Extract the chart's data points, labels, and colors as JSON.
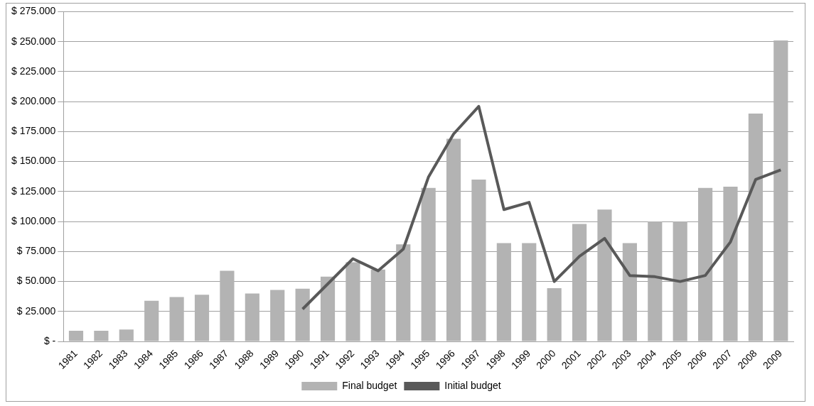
{
  "chart_data": {
    "type": "bar",
    "categories": [
      "1981",
      "1982",
      "1983",
      "1984",
      "1985",
      "1986",
      "1987",
      "1988",
      "1989",
      "1990",
      "1991",
      "1992",
      "1993",
      "1994",
      "1995",
      "1996",
      "1997",
      "1998",
      "1999",
      "2000",
      "2001",
      "2002",
      "2003",
      "2004",
      "2005",
      "2006",
      "2007",
      "2008",
      "2009"
    ],
    "series": [
      {
        "name": "Final budget",
        "color": "#b3b3b3",
        "values": [
          9000,
          9000,
          10000,
          34000,
          37000,
          39000,
          59000,
          40000,
          43000,
          44000,
          54000,
          66000,
          60000,
          81000,
          128000,
          169000,
          135000,
          82000,
          82000,
          44500,
          98000,
          110000,
          82000,
          100000,
          100000,
          128000,
          129000,
          190000,
          251000
        ]
      },
      {
        "name": "Initial budget",
        "type": "line",
        "color": "#595959",
        "values": [
          null,
          null,
          null,
          null,
          null,
          null,
          null,
          null,
          null,
          27000,
          48000,
          69000,
          59000,
          77000,
          137000,
          173000,
          196000,
          110000,
          116000,
          50000,
          71000,
          86000,
          55000,
          54000,
          50000,
          55000,
          83000,
          135000,
          143000
        ]
      }
    ],
    "ylim": [
      0,
      275000
    ],
    "yticks": [
      {
        "value": 0,
        "label": "$ -"
      },
      {
        "value": 25000,
        "label": "$ 25.000"
      },
      {
        "value": 50000,
        "label": "$ 50.000"
      },
      {
        "value": 75000,
        "label": "$ 75.000"
      },
      {
        "value": 100000,
        "label": "$ 100.000"
      },
      {
        "value": 125000,
        "label": "$ 125.000"
      },
      {
        "value": 150000,
        "label": "$ 150.000"
      },
      {
        "value": 175000,
        "label": "$ 175.000"
      },
      {
        "value": 200000,
        "label": "$ 200.000"
      },
      {
        "value": 225000,
        "label": "$ 225.000"
      },
      {
        "value": 250000,
        "label": "$ 250.000"
      },
      {
        "value": 275000,
        "label": "$ 275.000"
      }
    ],
    "grid": "y",
    "legend": "bottom",
    "marker": "none"
  }
}
